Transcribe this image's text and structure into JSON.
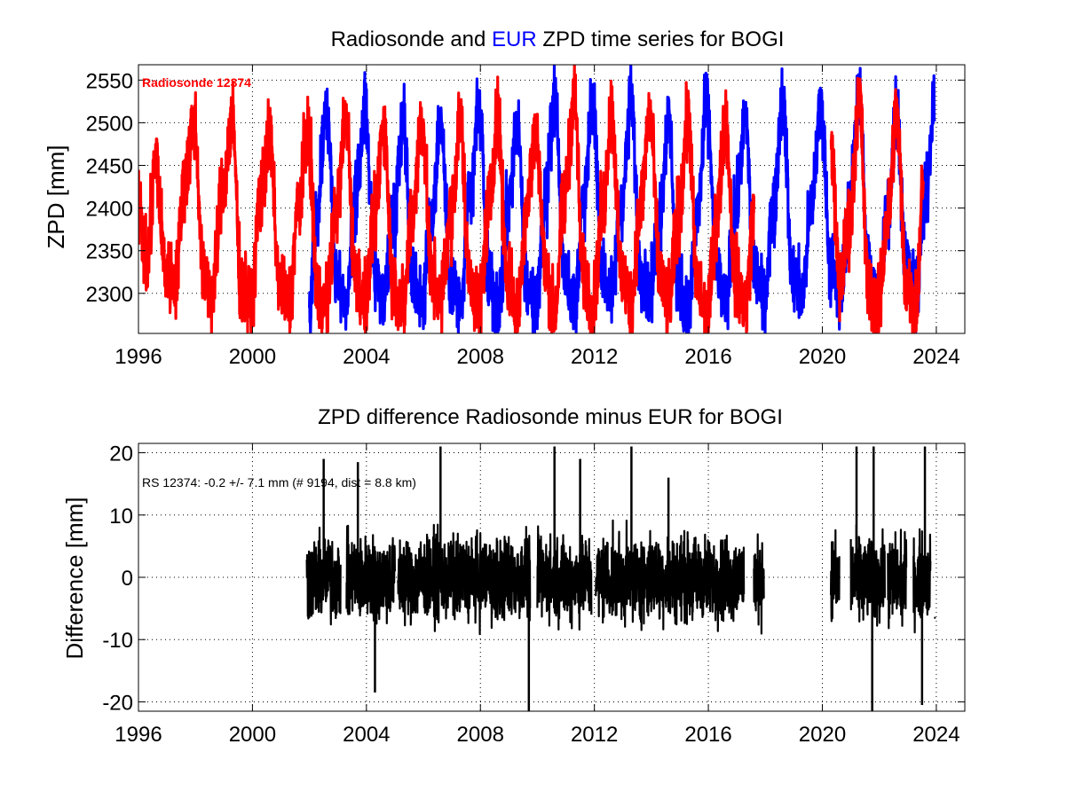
{
  "colors": {
    "radiosonde": "#ff0000",
    "eur": "#0000ff",
    "difference": "#000000",
    "axis": "#000000",
    "grid": "#000000",
    "background": "#ffffff"
  },
  "chart_data": [
    {
      "type": "line",
      "title": {
        "prefix": "Radiosonde and ",
        "highlight": "EUR",
        "suffix": " ZPD time series for BOGI"
      },
      "ylabel": "ZPD [mm]",
      "xlabel": "",
      "xlim": [
        1996.0,
        2025.0
      ],
      "ylim": [
        2253,
        2568
      ],
      "grid": true,
      "x_ticks": [
        1996,
        2000,
        2004,
        2008,
        2012,
        2016,
        2020,
        2024
      ],
      "x_tick_labels": [
        "1996",
        "2000",
        "2004",
        "2008",
        "2012",
        "2016",
        "2020",
        "2024"
      ],
      "y_ticks": [
        2300,
        2350,
        2400,
        2450,
        2500,
        2550
      ],
      "y_tick_labels": [
        "2300",
        "2350",
        "2400",
        "2450",
        "2500",
        "2550"
      ],
      "annotation": "Radiosonde 12374",
      "series": [
        {
          "key": "eur",
          "color": "#0000ff",
          "note": "seasonal ZPD, periodic maxima near mid-year",
          "x": [
            2002.0,
            2002.25,
            2002.6,
            2002.95,
            2003.3,
            2003.6,
            2003.95,
            2004.3,
            2004.6,
            2004.95,
            2005.3,
            2005.6,
            2005.95,
            2006.3,
            2006.6,
            2006.95,
            2007.3,
            2007.6,
            2007.95,
            2008.3,
            2008.6,
            2008.95,
            2009.3,
            2009.6,
            2009.95,
            2010.3,
            2010.6,
            2010.95,
            2011.3,
            2011.6,
            2011.95,
            2012.3,
            2012.6,
            2012.95,
            2013.3,
            2013.6,
            2013.95,
            2014.3,
            2014.6,
            2014.95,
            2015.3,
            2015.6,
            2015.95,
            2016.3,
            2016.6,
            2016.95,
            2017.3,
            2017.6,
            2017.95,
            2018.3,
            2018.6,
            2018.95,
            2019.3,
            2019.6,
            2019.95,
            2020.3,
            2020.6,
            2020.95,
            2021.3,
            2021.6,
            2021.95,
            2022.3,
            2022.6,
            2022.95,
            2023.3,
            2023.6,
            2023.95
          ],
          "y": [
            2280,
            2380,
            2520,
            2320,
            2290,
            2400,
            2515,
            2330,
            2290,
            2390,
            2510,
            2320,
            2290,
            2390,
            2505,
            2320,
            2280,
            2400,
            2515,
            2330,
            2270,
            2395,
            2500,
            2310,
            2290,
            2410,
            2535,
            2325,
            2285,
            2400,
            2520,
            2320,
            2295,
            2405,
            2525,
            2330,
            2300,
            2395,
            2505,
            2310,
            2275,
            2390,
            2520,
            2330,
            2285,
            2395,
            2505,
            2330,
            2295,
            2405,
            2530,
            2320,
            2300,
            2400,
            2520,
            2330,
            2290,
            2395,
            2540,
            2330,
            2290,
            2400,
            2515,
            2330,
            2300,
            2405,
            2530
          ],
          "spread": [
            28,
            30,
            28,
            28,
            28,
            30,
            28,
            28,
            28,
            30,
            28,
            28,
            28,
            30,
            28,
            28,
            28,
            30,
            28,
            28,
            28,
            30,
            28,
            28,
            28,
            30,
            28,
            28,
            28,
            30,
            28,
            28,
            28,
            30,
            28,
            28,
            28,
            30,
            28,
            28,
            28,
            30,
            28,
            28,
            28,
            30,
            28,
            28,
            28,
            30,
            28,
            28,
            28,
            30,
            28,
            28,
            28,
            30,
            28,
            28,
            28,
            30,
            28,
            28,
            28,
            30,
            28
          ]
        },
        {
          "key": "radiosonde",
          "color": "#ff0000",
          "segments": [
            {
              "x_start": 1996.0,
              "x_end": 2017.6
            },
            {
              "x_start": 2020.3,
              "x_end": 2023.55
            }
          ],
          "x": [
            1996.0,
            1996.3,
            1996.6,
            1996.95,
            1997.3,
            1997.6,
            1997.95,
            1998.3,
            1998.6,
            1998.95,
            1999.3,
            1999.6,
            1999.95,
            2000.3,
            2000.6,
            2000.95,
            2001.3,
            2001.6,
            2001.95,
            2002.3,
            2002.6,
            2002.95,
            2003.3,
            2003.6,
            2003.95,
            2004.3,
            2004.6,
            2004.95,
            2005.3,
            2005.6,
            2005.95,
            2006.3,
            2006.6,
            2006.95,
            2007.3,
            2007.6,
            2007.95,
            2008.3,
            2008.6,
            2008.95,
            2009.3,
            2009.6,
            2009.95,
            2010.3,
            2010.6,
            2010.95,
            2011.3,
            2011.6,
            2011.95,
            2012.3,
            2012.6,
            2012.95,
            2013.3,
            2013.6,
            2013.95,
            2014.3,
            2014.6,
            2014.95,
            2015.3,
            2015.6,
            2015.95,
            2016.3,
            2016.6,
            2016.95,
            2017.3,
            2017.6,
            2020.3,
            2020.6,
            2020.95,
            2021.3,
            2021.6,
            2021.95,
            2022.3,
            2022.6,
            2022.95,
            2023.3,
            2023.55
          ],
          "y": [
            2400,
            2330,
            2455,
            2330,
            2310,
            2430,
            2500,
            2320,
            2300,
            2420,
            2500,
            2310,
            2290,
            2420,
            2480,
            2310,
            2290,
            2400,
            2490,
            2300,
            2290,
            2400,
            2510,
            2320,
            2290,
            2390,
            2500,
            2310,
            2285,
            2390,
            2500,
            2320,
            2290,
            2390,
            2500,
            2320,
            2285,
            2400,
            2505,
            2320,
            2275,
            2400,
            2490,
            2320,
            2280,
            2410,
            2530,
            2320,
            2285,
            2400,
            2515,
            2320,
            2290,
            2400,
            2510,
            2320,
            2285,
            2390,
            2505,
            2310,
            2270,
            2390,
            2505,
            2320,
            2285,
            2390,
            2480,
            2310,
            2380,
            2530,
            2310,
            2280,
            2390,
            2510,
            2310,
            2290,
            2440
          ],
          "spread": [
            30,
            32,
            32,
            30,
            30,
            32,
            32,
            30,
            30,
            32,
            32,
            30,
            30,
            32,
            32,
            30,
            30,
            32,
            32,
            30,
            30,
            32,
            32,
            30,
            30,
            32,
            32,
            30,
            30,
            32,
            32,
            30,
            30,
            32,
            32,
            30,
            30,
            32,
            32,
            30,
            30,
            32,
            32,
            30,
            30,
            32,
            32,
            30,
            30,
            32,
            32,
            30,
            30,
            32,
            32,
            30,
            30,
            32,
            32,
            30,
            30,
            32,
            32,
            30,
            30,
            32,
            30,
            32,
            32,
            30,
            30,
            32,
            32,
            30,
            30,
            32,
            30
          ]
        }
      ]
    },
    {
      "type": "line",
      "title": {
        "prefix": "ZPD difference Radiosonde minus EUR for BOGI",
        "highlight": "",
        "suffix": ""
      },
      "ylabel": "Difference [mm]",
      "xlabel": "",
      "xlim": [
        1996.0,
        2025.0
      ],
      "ylim": [
        -21.5,
        21.5
      ],
      "grid": true,
      "x_ticks": [
        1996,
        2000,
        2004,
        2008,
        2012,
        2016,
        2020,
        2024
      ],
      "x_tick_labels": [
        "1996",
        "2000",
        "2004",
        "2008",
        "2012",
        "2016",
        "2020",
        "2024"
      ],
      "y_ticks": [
        -20,
        -10,
        0,
        10,
        20
      ],
      "y_tick_labels": [
        "-20",
        "-10",
        "0",
        "10",
        "20"
      ],
      "annotation": "RS 12374: -0.2 +/- 7.1 mm (# 9194, dist =   8.8 km)",
      "series": [
        {
          "key": "difference",
          "color": "#000000",
          "mean": -0.2,
          "stdev": 7.1,
          "count": 9194,
          "dist_km": 8.8,
          "segments": [
            {
              "x_start": 2001.9,
              "x_end": 2003.1
            },
            {
              "x_start": 2003.3,
              "x_end": 2005.0
            },
            {
              "x_start": 2005.1,
              "x_end": 2009.75
            },
            {
              "x_start": 2010.0,
              "x_end": 2011.9
            },
            {
              "x_start": 2012.05,
              "x_end": 2017.25
            },
            {
              "x_start": 2017.6,
              "x_end": 2017.95
            },
            {
              "x_start": 2020.3,
              "x_end": 2020.6
            },
            {
              "x_start": 2021.0,
              "x_end": 2022.2
            },
            {
              "x_start": 2022.3,
              "x_end": 2022.95
            },
            {
              "x_start": 2023.2,
              "x_end": 2023.8
            }
          ],
          "spikes": [
            {
              "x": 2002.5,
              "y": 19
            },
            {
              "x": 2003.7,
              "y": 18.5
            },
            {
              "x": 2004.3,
              "y": -18.5
            },
            {
              "x": 2006.6,
              "y": 21
            },
            {
              "x": 2009.7,
              "y": -21.5
            },
            {
              "x": 2010.6,
              "y": 21
            },
            {
              "x": 2011.5,
              "y": 19
            },
            {
              "x": 2013.3,
              "y": 21
            },
            {
              "x": 2014.6,
              "y": 16
            },
            {
              "x": 2021.2,
              "y": 21
            },
            {
              "x": 2021.75,
              "y": -21.5
            },
            {
              "x": 2021.8,
              "y": 21
            },
            {
              "x": 2023.5,
              "y": -20.5
            },
            {
              "x": 2023.6,
              "y": 21
            }
          ],
          "outliers": [
            {
              "x": 2023.95,
              "y": -6.5
            }
          ]
        }
      ]
    }
  ]
}
